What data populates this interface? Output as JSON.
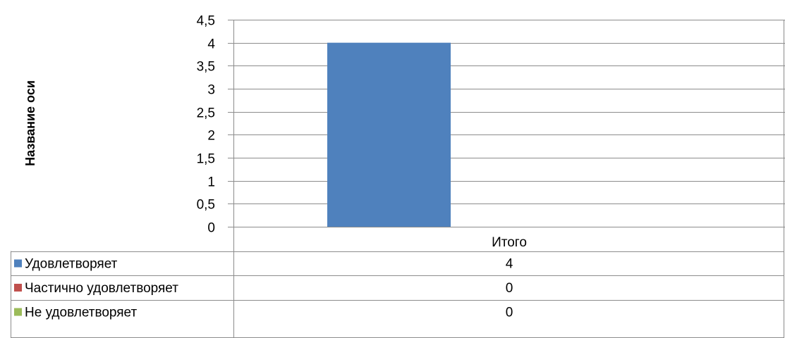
{
  "chart_data": {
    "type": "bar",
    "categories": [
      "Итого"
    ],
    "series": [
      {
        "name": "Удовлетворяет",
        "values": [
          4
        ],
        "color": "#4F81BD"
      },
      {
        "name": "Частично удовлетворяет",
        "values": [
          0
        ],
        "color": "#C0504D"
      },
      {
        "name": "Не удовлетворяет",
        "values": [
          0
        ],
        "color": "#9BBB59"
      }
    ],
    "title": "",
    "xlabel": "",
    "ylabel": "Название оси",
    "ylim": [
      0,
      4.5
    ],
    "yticks": [
      "0",
      "0,5",
      "1",
      "1,5",
      "2",
      "2,5",
      "3",
      "3,5",
      "4",
      "4,5"
    ],
    "grid": true,
    "legend": "data-table-left"
  }
}
